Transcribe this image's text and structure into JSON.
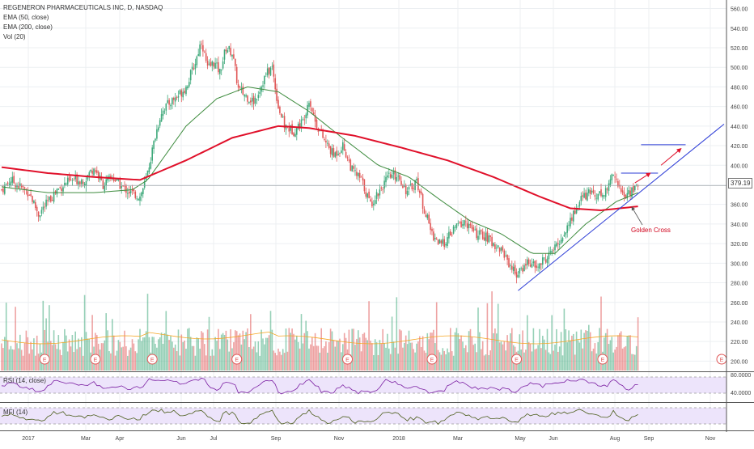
{
  "title": "REGENERON PHARMACEUTICALS INC, D, NASDAQ",
  "indicators": [
    "EMA (50, close)",
    "EMA (200, close)",
    "Vol (20)"
  ],
  "rsi_label": "RSI (14, close)",
  "mfi_label": "MFI (14)",
  "annotation": "Golden Cross",
  "last_price": "379.19",
  "earnings_marker": "E",
  "colors": {
    "up": "#3fa97b",
    "down": "#e05757",
    "ema50": "#3d8b3d",
    "ema200": "#e0102a",
    "trend": "#2b3bd6",
    "oscillator": "#7b1fa2",
    "band": "#ede4fb",
    "annotation": "#d0021b"
  },
  "chart_data": {
    "type": "candlestick",
    "x_axis_labels": [
      "2017",
      "Mar",
      "Apr",
      "Jun",
      "Jul",
      "Sep",
      "Nov",
      "2018",
      "Mar",
      "May",
      "Jun",
      "Aug",
      "Sep",
      "Nov"
    ],
    "y_axis_labels": [
      "560.00",
      "540.00",
      "520.00",
      "500.00",
      "480.00",
      "460.00",
      "440.00",
      "420.00",
      "400.00",
      "380.00",
      "360.00",
      "340.00",
      "320.00",
      "300.00",
      "280.00",
      "260.00",
      "240.00",
      "220.00",
      "200.00"
    ],
    "rsi_axis_labels": [
      "80.0000",
      "40.0000"
    ],
    "ylim": [
      190,
      565
    ],
    "price_path": [
      {
        "d": 0,
        "p": 375
      },
      {
        "d": 6,
        "p": 385
      },
      {
        "d": 12,
        "p": 378
      },
      {
        "d": 18,
        "p": 372
      },
      {
        "d": 24,
        "p": 350
      },
      {
        "d": 30,
        "p": 362
      },
      {
        "d": 36,
        "p": 375
      },
      {
        "d": 42,
        "p": 382
      },
      {
        "d": 48,
        "p": 385
      },
      {
        "d": 54,
        "p": 385
      },
      {
        "d": 60,
        "p": 398
      },
      {
        "d": 66,
        "p": 380
      },
      {
        "d": 72,
        "p": 388
      },
      {
        "d": 78,
        "p": 378
      },
      {
        "d": 84,
        "p": 372
      },
      {
        "d": 90,
        "p": 368
      },
      {
        "d": 94,
        "p": 385
      },
      {
        "d": 100,
        "p": 430
      },
      {
        "d": 104,
        "p": 455
      },
      {
        "d": 110,
        "p": 465
      },
      {
        "d": 114,
        "p": 470
      },
      {
        "d": 120,
        "p": 480
      },
      {
        "d": 126,
        "p": 505
      },
      {
        "d": 130,
        "p": 528
      },
      {
        "d": 134,
        "p": 498
      },
      {
        "d": 138,
        "p": 505
      },
      {
        "d": 142,
        "p": 495
      },
      {
        "d": 146,
        "p": 520
      },
      {
        "d": 150,
        "p": 515
      },
      {
        "d": 154,
        "p": 478
      },
      {
        "d": 158,
        "p": 472
      },
      {
        "d": 164,
        "p": 465
      },
      {
        "d": 168,
        "p": 478
      },
      {
        "d": 172,
        "p": 493
      },
      {
        "d": 176,
        "p": 500
      },
      {
        "d": 180,
        "p": 460
      },
      {
        "d": 184,
        "p": 440
      },
      {
        "d": 190,
        "p": 435
      },
      {
        "d": 196,
        "p": 445
      },
      {
        "d": 200,
        "p": 468
      },
      {
        "d": 204,
        "p": 445
      },
      {
        "d": 210,
        "p": 425
      },
      {
        "d": 216,
        "p": 410
      },
      {
        "d": 222,
        "p": 420
      },
      {
        "d": 228,
        "p": 395
      },
      {
        "d": 234,
        "p": 385
      },
      {
        "d": 240,
        "p": 360
      },
      {
        "d": 246,
        "p": 375
      },
      {
        "d": 252,
        "p": 388
      },
      {
        "d": 258,
        "p": 390
      },
      {
        "d": 264,
        "p": 372
      },
      {
        "d": 270,
        "p": 385
      },
      {
        "d": 274,
        "p": 360
      },
      {
        "d": 280,
        "p": 330
      },
      {
        "d": 286,
        "p": 318
      },
      {
        "d": 290,
        "p": 325
      },
      {
        "d": 296,
        "p": 338
      },
      {
        "d": 302,
        "p": 342
      },
      {
        "d": 308,
        "p": 330
      },
      {
        "d": 314,
        "p": 328
      },
      {
        "d": 320,
        "p": 320
      },
      {
        "d": 326,
        "p": 312
      },
      {
        "d": 332,
        "p": 295
      },
      {
        "d": 336,
        "p": 288
      },
      {
        "d": 342,
        "p": 302
      },
      {
        "d": 348,
        "p": 295
      },
      {
        "d": 354,
        "p": 305
      },
      {
        "d": 360,
        "p": 315
      },
      {
        "d": 366,
        "p": 330
      },
      {
        "d": 372,
        "p": 350
      },
      {
        "d": 378,
        "p": 368
      },
      {
        "d": 384,
        "p": 372
      },
      {
        "d": 390,
        "p": 370
      },
      {
        "d": 394,
        "p": 375
      },
      {
        "d": 398,
        "p": 395
      },
      {
        "d": 402,
        "p": 375
      },
      {
        "d": 406,
        "p": 368
      },
      {
        "d": 410,
        "p": 375
      },
      {
        "d": 414,
        "p": 379
      }
    ],
    "earnings_days": [
      28,
      61,
      98,
      153,
      225,
      280,
      335,
      391
    ],
    "ema50_path": [
      {
        "d": 0,
        "p": 378
      },
      {
        "d": 30,
        "p": 372
      },
      {
        "d": 60,
        "p": 372
      },
      {
        "d": 85,
        "p": 375
      },
      {
        "d": 95,
        "p": 385
      },
      {
        "d": 120,
        "p": 440
      },
      {
        "d": 140,
        "p": 468
      },
      {
        "d": 160,
        "p": 480
      },
      {
        "d": 180,
        "p": 475
      },
      {
        "d": 200,
        "p": 455
      },
      {
        "d": 220,
        "p": 430
      },
      {
        "d": 245,
        "p": 400
      },
      {
        "d": 265,
        "p": 388
      },
      {
        "d": 285,
        "p": 365
      },
      {
        "d": 305,
        "p": 343
      },
      {
        "d": 325,
        "p": 330
      },
      {
        "d": 345,
        "p": 310
      },
      {
        "d": 360,
        "p": 310
      },
      {
        "d": 380,
        "p": 340
      },
      {
        "d": 400,
        "p": 363
      },
      {
        "d": 414,
        "p": 372
      }
    ],
    "ema200_path": [
      {
        "d": 0,
        "p": 398
      },
      {
        "d": 30,
        "p": 392
      },
      {
        "d": 60,
        "p": 388
      },
      {
        "d": 90,
        "p": 385
      },
      {
        "d": 120,
        "p": 405
      },
      {
        "d": 150,
        "p": 428
      },
      {
        "d": 180,
        "p": 440
      },
      {
        "d": 200,
        "p": 438
      },
      {
        "d": 230,
        "p": 430
      },
      {
        "d": 260,
        "p": 418
      },
      {
        "d": 290,
        "p": 405
      },
      {
        "d": 320,
        "p": 388
      },
      {
        "d": 350,
        "p": 368
      },
      {
        "d": 370,
        "p": 356
      },
      {
        "d": 390,
        "p": 354
      },
      {
        "d": 414,
        "p": 358
      }
    ],
    "trendlines": [
      {
        "x0": 336,
        "y0": 272,
        "x1": 470,
        "y1": 442
      },
      {
        "x0": 403,
        "y0": 392,
        "x1": 427,
        "y1": 392
      },
      {
        "x0": 416,
        "y0": 421,
        "x1": 445,
        "y1": 421
      }
    ],
    "arrows": [
      {
        "x0": 412,
        "y0": 382,
        "x1": 422,
        "y1": 392
      },
      {
        "x0": 429,
        "y0": 400,
        "x1": 442,
        "y1": 417
      }
    ],
    "last_price_value": 379.19
  }
}
